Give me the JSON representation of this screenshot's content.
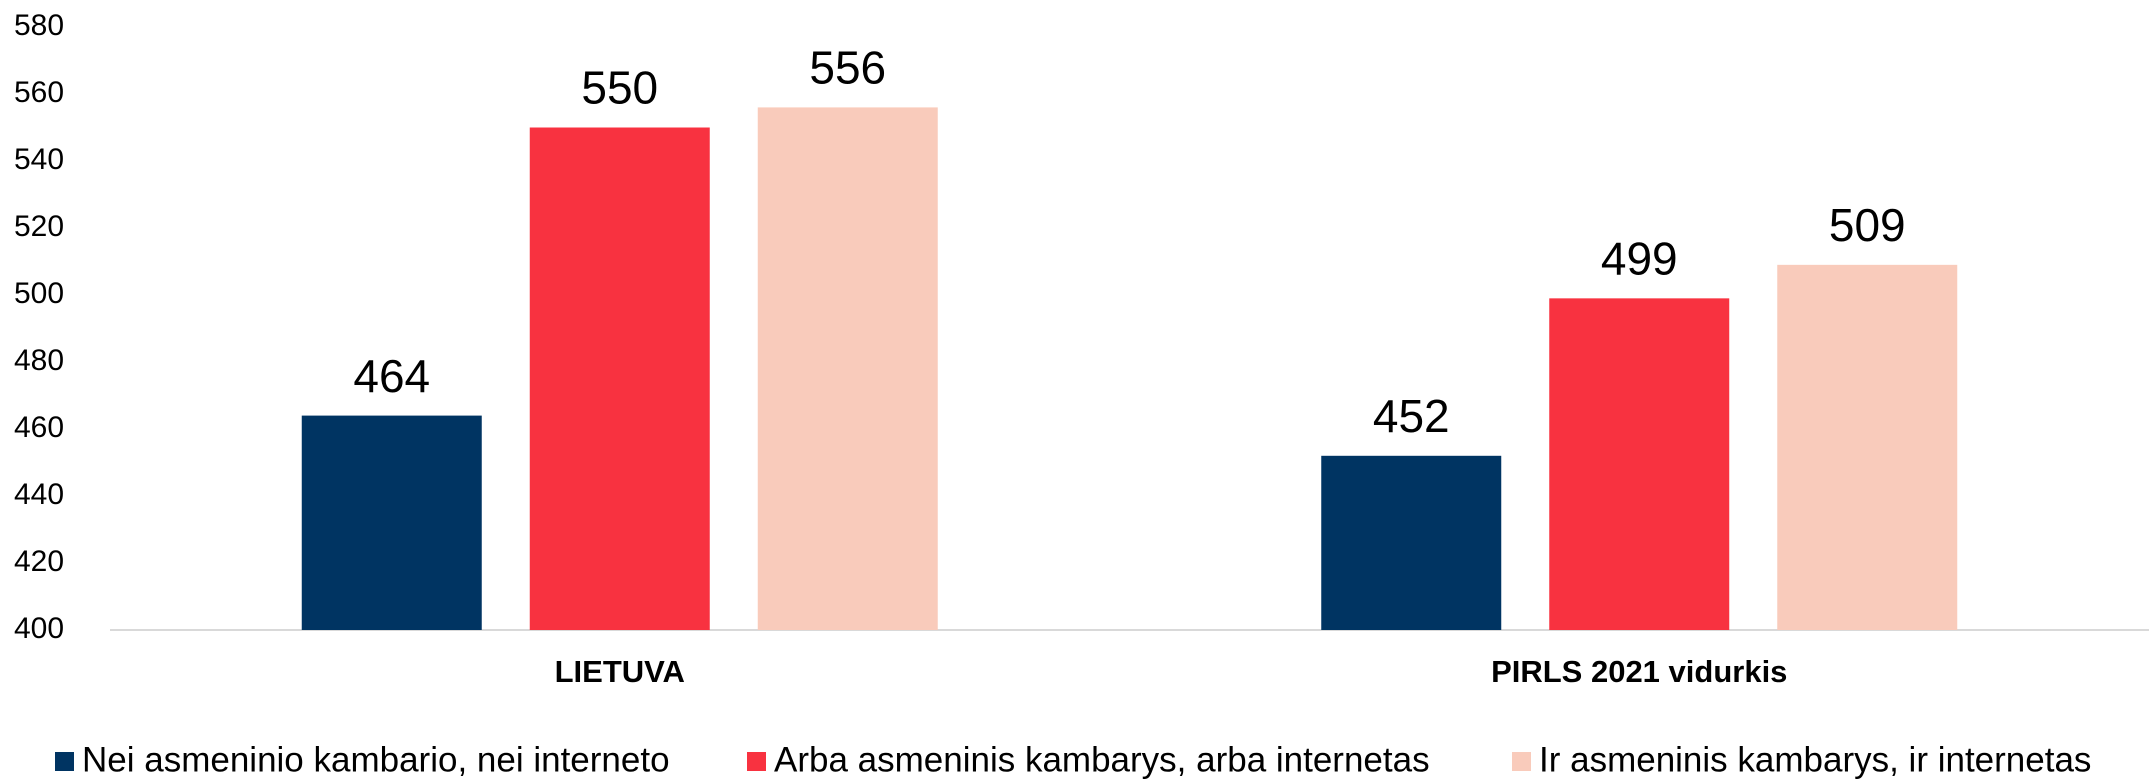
{
  "chart_data": {
    "type": "bar",
    "categories": [
      "LIETUVA",
      "PIRLS 2021 vidurkis"
    ],
    "series": [
      {
        "name": "Nei asmeninio kambario, nei interneto",
        "color": "#003462",
        "values": [
          464,
          452
        ]
      },
      {
        "name": "Arba asmeninis kambarys, arba internetas",
        "color": "#f83240",
        "values": [
          550,
          499
        ]
      },
      {
        "name": "Ir asmeninis kambarys, ir internetas",
        "color": "#f9cbbb",
        "values": [
          556,
          509
        ]
      }
    ],
    "ylim": [
      400,
      580
    ],
    "yticks": [
      400,
      420,
      440,
      460,
      480,
      500,
      520,
      540,
      560,
      580
    ],
    "grid": false,
    "legend": "bottom"
  }
}
